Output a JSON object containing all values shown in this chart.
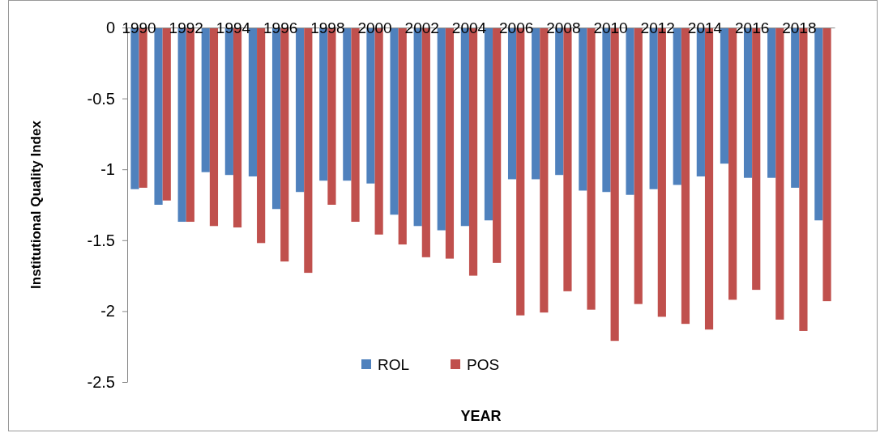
{
  "chart_data": {
    "type": "bar",
    "xlabel": "YEAR",
    "ylabel": "Institutional Quality Index",
    "categories": [
      "1990",
      null,
      "1992",
      null,
      "1994",
      null,
      "1996",
      null,
      "1998",
      null,
      "2000",
      null,
      "2002",
      null,
      "2004",
      null,
      "2006",
      null,
      "2008",
      null,
      "2010",
      null,
      "2012",
      null,
      "2014",
      null,
      "2016",
      null,
      "2018",
      null
    ],
    "series": [
      {
        "name": "ROL",
        "color": "#4f81bd",
        "values": [
          -1.14,
          -1.25,
          -1.37,
          -1.02,
          -1.04,
          -1.05,
          -1.28,
          -1.16,
          -1.08,
          -1.08,
          -1.1,
          -1.32,
          -1.4,
          -1.43,
          -1.4,
          -1.36,
          -1.07,
          -1.07,
          -1.04,
          -1.15,
          -1.16,
          -1.18,
          -1.14,
          -1.11,
          -1.05,
          -0.96,
          -1.06,
          -1.06,
          -1.13,
          -1.36
        ]
      },
      {
        "name": "POS",
        "color": "#c0504d",
        "values": [
          -1.13,
          -1.22,
          -1.37,
          -1.4,
          -1.41,
          -1.52,
          -1.65,
          -1.73,
          -1.25,
          -1.37,
          -1.46,
          -1.53,
          -1.62,
          -1.63,
          -1.75,
          -1.66,
          -2.03,
          -2.01,
          -1.86,
          -1.99,
          -2.21,
          -1.95,
          -2.04,
          -2.09,
          -2.13,
          -1.92,
          -1.85,
          -2.06,
          -2.14,
          -1.93
        ]
      }
    ],
    "ylim": [
      -2.5,
      0
    ],
    "yticks": [
      0,
      -0.5,
      -1,
      -1.5,
      -2,
      -2.5
    ],
    "grid": false,
    "legend": "bottom"
  }
}
